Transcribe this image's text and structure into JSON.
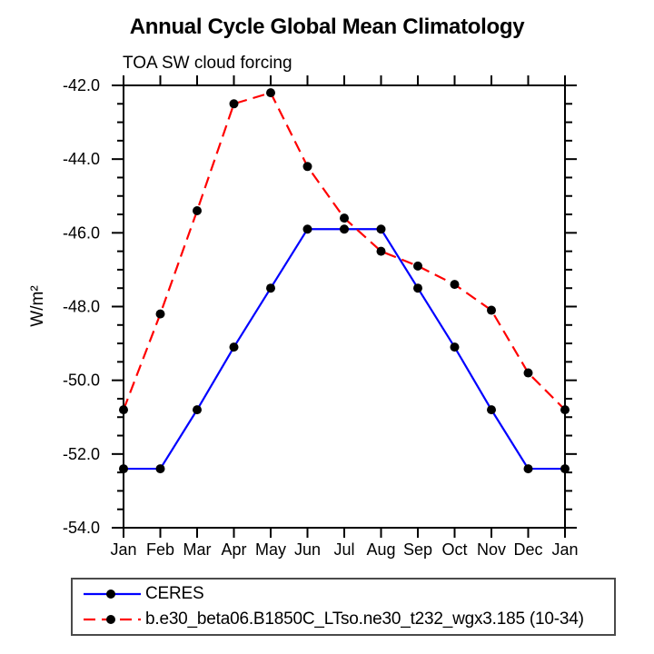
{
  "title": "Annual Cycle Global Mean Climatology",
  "subtitle": "TOA SW cloud forcing",
  "chart_data": {
    "type": "line",
    "x_categories": [
      "Jan",
      "Feb",
      "Mar",
      "Apr",
      "May",
      "Jun",
      "Jul",
      "Aug",
      "Sep",
      "Oct",
      "Nov",
      "Dec",
      "Jan"
    ],
    "ylabel": "W/m²",
    "ylim": [
      -54.0,
      -42.0
    ],
    "yticks": [
      -42.0,
      -44.0,
      -46.0,
      -48.0,
      -50.0,
      -52.0,
      -54.0
    ],
    "ytick_labels": [
      "-42.0",
      "-44.0",
      "-46.0",
      "-48.0",
      "-50.0",
      "-52.0",
      "-54.0"
    ],
    "y_minor_tick_interval": 0.5,
    "grid": false,
    "legend_position": "below-bottom-left",
    "frame": "box-with-outward-ticks",
    "series": [
      {
        "name": "CERES",
        "color": "#0000ff",
        "line_style": "solid",
        "marker": "filled-circle",
        "marker_color": "#000000",
        "values": [
          -52.4,
          -52.4,
          -50.8,
          -49.1,
          -47.5,
          -45.9,
          -45.9,
          -45.9,
          -47.5,
          -49.1,
          -50.8,
          -52.4,
          -52.4
        ]
      },
      {
        "name": "b.e30_beta06.B1850C_LTso.ne30_t232_wgx3.185 (10-34)",
        "color": "#ff0000",
        "line_style": "dashed",
        "marker": "filled-circle",
        "marker_color": "#000000",
        "values": [
          -50.8,
          -48.2,
          -45.4,
          -42.5,
          -42.2,
          -44.2,
          -45.6,
          -46.5,
          -46.9,
          -47.4,
          -48.1,
          -49.8,
          -50.8
        ]
      }
    ]
  }
}
